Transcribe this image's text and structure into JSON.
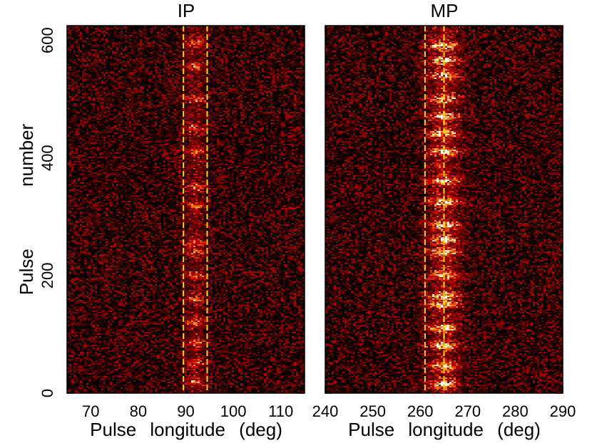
{
  "chart_data": [
    {
      "type": "heatmap",
      "title": "IP",
      "xlabel": "Pulse longitude (deg)",
      "ylabel": "Pulse number",
      "xlim": [
        65,
        115
      ],
      "ylim": [
        0,
        625
      ],
      "xticks": [
        70,
        80,
        90,
        100,
        110
      ],
      "yticks": [
        0,
        200,
        400,
        600
      ],
      "colormap": "black-red-yellow-white",
      "markers": [
        89.5,
        94.5
      ],
      "marker_color": "#ffd700",
      "emission": {
        "center": 92,
        "width": 5,
        "strength": 0.45,
        "burst_pulses": [
          20,
          50,
          85,
          120,
          160,
          200,
          240,
          255,
          320,
          350,
          410,
          450,
          500,
          555,
          595
        ]
      }
    },
    {
      "type": "heatmap",
      "title": "MP",
      "xlabel": "Pulse longitude (deg)",
      "ylabel": "",
      "xlim": [
        240,
        290
      ],
      "ylim": [
        0,
        625
      ],
      "xticks": [
        240,
        250,
        260,
        270,
        280,
        290
      ],
      "yticks": [
        0,
        200,
        400,
        600
      ],
      "colormap": "black-red-yellow-white",
      "markers": [
        261,
        265
      ],
      "marker_color": "#ffd700",
      "emission": {
        "center": 265,
        "width": 7,
        "strength": 0.8,
        "burst_pulses": [
          15,
          45,
          80,
          110,
          150,
          165,
          200,
          240,
          260,
          285,
          325,
          360,
          410,
          440,
          470,
          500,
          540,
          565,
          590
        ]
      }
    }
  ]
}
